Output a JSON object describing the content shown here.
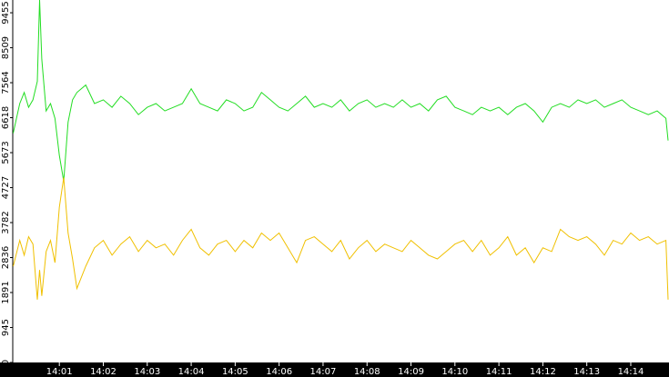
{
  "chart_data": {
    "type": "line",
    "x": [
      -0.05,
      0.1,
      0.2,
      0.3,
      0.4,
      0.5,
      0.55,
      0.6,
      0.7,
      0.8,
      0.9,
      1.0,
      1.1,
      1.2,
      1.3,
      1.4,
      1.6,
      1.8,
      2.0,
      2.2,
      2.4,
      2.6,
      2.8,
      3.0,
      3.2,
      3.4,
      3.6,
      3.8,
      4.0,
      4.2,
      4.4,
      4.6,
      4.8,
      5.0,
      5.2,
      5.4,
      5.6,
      5.8,
      6.0,
      6.2,
      6.4,
      6.6,
      6.8,
      7.0,
      7.2,
      7.4,
      7.6,
      7.8,
      8.0,
      8.2,
      8.4,
      8.6,
      8.8,
      9.0,
      9.2,
      9.4,
      9.6,
      9.8,
      10.0,
      10.2,
      10.4,
      10.6,
      10.8,
      11.0,
      11.2,
      11.4,
      11.6,
      11.8,
      12.0,
      12.2,
      12.4,
      12.6,
      12.8,
      13.0,
      13.2,
      13.4,
      13.6,
      13.8,
      14.0,
      14.2,
      14.4,
      14.6,
      14.8,
      14.85
    ],
    "series": [
      {
        "color": "#22dd22",
        "values": [
          6200,
          7000,
          7300,
          6900,
          7100,
          7600,
          9800,
          8200,
          6800,
          7000,
          6600,
          5600,
          4900,
          6500,
          7100,
          7300,
          7500,
          7000,
          7100,
          6900,
          7200,
          7000,
          6700,
          6900,
          7000,
          6800,
          6900,
          7000,
          7400,
          7000,
          6900,
          6800,
          7100,
          7000,
          6800,
          6900,
          7300,
          7100,
          6900,
          6800,
          7000,
          7200,
          6900,
          7000,
          6900,
          7100,
          6800,
          7000,
          7100,
          6900,
          7000,
          6900,
          7100,
          6900,
          7000,
          6800,
          7100,
          7200,
          6900,
          6800,
          6700,
          6900,
          6800,
          6900,
          6700,
          6900,
          7000,
          6800,
          6500,
          6900,
          7000,
          6900,
          7100,
          7000,
          7100,
          6900,
          7000,
          7100,
          6900,
          6800,
          6700,
          6800,
          6600,
          6000
        ]
      },
      {
        "color": "#f0c000",
        "values": [
          2600,
          3300,
          2900,
          3400,
          3200,
          1700,
          2500,
          1800,
          3000,
          3300,
          2700,
          4200,
          5000,
          3500,
          2800,
          2000,
          2600,
          3100,
          3300,
          2900,
          3200,
          3400,
          3000,
          3300,
          3100,
          3200,
          2900,
          3300,
          3600,
          3100,
          2900,
          3200,
          3300,
          3000,
          3300,
          3100,
          3500,
          3300,
          3500,
          3100,
          2700,
          3300,
          3400,
          3200,
          3000,
          3300,
          2800,
          3100,
          3300,
          3000,
          3200,
          3100,
          3000,
          3300,
          3100,
          2900,
          2800,
          3000,
          3200,
          3300,
          3000,
          3300,
          2900,
          3100,
          3400,
          2900,
          3100,
          2700,
          3100,
          3000,
          3600,
          3400,
          3300,
          3400,
          3200,
          2900,
          3300,
          3200,
          3500,
          3300,
          3400,
          3200,
          3300,
          1700
        ]
      }
    ],
    "xlim": [
      -0.06,
      14.87
    ],
    "xticks": [
      {
        "value": 1,
        "label": "14:01"
      },
      {
        "value": 2,
        "label": "14:02"
      },
      {
        "value": 3,
        "label": "14:03"
      },
      {
        "value": 4,
        "label": "14:04"
      },
      {
        "value": 5,
        "label": "14:05"
      },
      {
        "value": 6,
        "label": "14:06"
      },
      {
        "value": 7,
        "label": "14:07"
      },
      {
        "value": 8,
        "label": "14:08"
      },
      {
        "value": 9,
        "label": "14:09"
      },
      {
        "value": 10,
        "label": "14:10"
      },
      {
        "value": 11,
        "label": "14:11"
      },
      {
        "value": 12,
        "label": "14:12"
      },
      {
        "value": 13,
        "label": "14:13"
      },
      {
        "value": 14,
        "label": "14:14"
      }
    ],
    "ylim": [
      0,
      9800
    ],
    "yticks": [
      0,
      945,
      1891,
      2836,
      3782,
      4727,
      5673,
      6618,
      7564,
      8509,
      9455
    ]
  }
}
